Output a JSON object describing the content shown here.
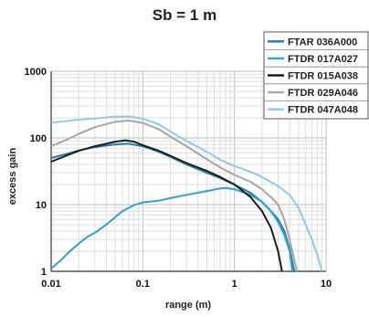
{
  "chart_data": {
    "type": "line",
    "title": "Sb = 1 m",
    "xlabel": "range (m)",
    "ylabel": "excess gain",
    "x_scale": "log",
    "y_scale": "log",
    "xlim": [
      0.01,
      10
    ],
    "ylim": [
      1,
      1000
    ],
    "x_ticks": [
      "0.01",
      "0.1",
      "1",
      "10"
    ],
    "y_ticks": [
      "1",
      "10",
      "100",
      "1000"
    ],
    "grid": true,
    "legend_position": "top-right",
    "series": [
      {
        "name": "FTAR 036A000",
        "color": "#1a7db5",
        "points": [
          [
            0.01,
            50
          ],
          [
            0.015,
            58
          ],
          [
            0.02,
            65
          ],
          [
            0.03,
            73
          ],
          [
            0.05,
            80
          ],
          [
            0.07,
            82
          ],
          [
            0.1,
            75
          ],
          [
            0.15,
            62
          ],
          [
            0.2,
            52
          ],
          [
            0.3,
            40
          ],
          [
            0.5,
            30
          ],
          [
            0.7,
            25
          ],
          [
            1,
            20
          ],
          [
            1.5,
            15
          ],
          [
            2,
            11
          ],
          [
            2.5,
            8
          ],
          [
            3,
            6
          ],
          [
            3.5,
            4
          ],
          [
            4,
            2.2
          ],
          [
            4.5,
            1
          ]
        ]
      },
      {
        "name": "FTDR 017A027",
        "color": "#2aa3d6",
        "points": [
          [
            0.01,
            1.1
          ],
          [
            0.013,
            1.5
          ],
          [
            0.016,
            2
          ],
          [
            0.02,
            2.6
          ],
          [
            0.025,
            3.3
          ],
          [
            0.03,
            3.8
          ],
          [
            0.04,
            5
          ],
          [
            0.05,
            6.5
          ],
          [
            0.06,
            8
          ],
          [
            0.08,
            9.8
          ],
          [
            0.1,
            10.8
          ],
          [
            0.15,
            11.5
          ],
          [
            0.2,
            12.5
          ],
          [
            0.3,
            14
          ],
          [
            0.5,
            16
          ],
          [
            0.7,
            17.5
          ],
          [
            0.8,
            17.8
          ],
          [
            1,
            17
          ],
          [
            1.5,
            14
          ],
          [
            2,
            11
          ],
          [
            2.5,
            8
          ],
          [
            3,
            5.5
          ],
          [
            3.5,
            3.5
          ],
          [
            4,
            2
          ],
          [
            4.3,
            1
          ]
        ]
      },
      {
        "name": "FTDR 015A038",
        "color": "#1c1c1c",
        "points": [
          [
            0.01,
            44
          ],
          [
            0.015,
            55
          ],
          [
            0.02,
            64
          ],
          [
            0.03,
            75
          ],
          [
            0.05,
            88
          ],
          [
            0.065,
            92
          ],
          [
            0.08,
            88
          ],
          [
            0.1,
            78
          ],
          [
            0.15,
            64
          ],
          [
            0.2,
            54
          ],
          [
            0.3,
            42
          ],
          [
            0.5,
            32
          ],
          [
            0.7,
            26
          ],
          [
            1,
            20
          ],
          [
            1.5,
            13
          ],
          [
            2,
            8
          ],
          [
            2.5,
            4.5
          ],
          [
            3,
            2
          ],
          [
            3.3,
            1
          ]
        ]
      },
      {
        "name": "FTDR 029A046",
        "color": "#a6a6a6",
        "points": [
          [
            0.01,
            75
          ],
          [
            0.015,
            95
          ],
          [
            0.02,
            115
          ],
          [
            0.03,
            145
          ],
          [
            0.05,
            175
          ],
          [
            0.07,
            182
          ],
          [
            0.1,
            168
          ],
          [
            0.15,
            135
          ],
          [
            0.2,
            105
          ],
          [
            0.3,
            75
          ],
          [
            0.5,
            48
          ],
          [
            0.7,
            36
          ],
          [
            1,
            28
          ],
          [
            1.5,
            22
          ],
          [
            2,
            17
          ],
          [
            2.5,
            13
          ],
          [
            3,
            10
          ],
          [
            3.5,
            6
          ],
          [
            4,
            3
          ],
          [
            4.5,
            1.5
          ],
          [
            4.8,
            1
          ]
        ]
      },
      {
        "name": "FTDR 047A048",
        "color": "#8fcae6",
        "points": [
          [
            0.01,
            170
          ],
          [
            0.015,
            180
          ],
          [
            0.02,
            188
          ],
          [
            0.03,
            195
          ],
          [
            0.05,
            208
          ],
          [
            0.07,
            210
          ],
          [
            0.1,
            195
          ],
          [
            0.15,
            160
          ],
          [
            0.2,
            125
          ],
          [
            0.3,
            90
          ],
          [
            0.5,
            62
          ],
          [
            0.7,
            47
          ],
          [
            1,
            38
          ],
          [
            1.5,
            31
          ],
          [
            2,
            26
          ],
          [
            3,
            19
          ],
          [
            4,
            14
          ],
          [
            5,
            9
          ],
          [
            6,
            5
          ],
          [
            7,
            3
          ],
          [
            8,
            1.8
          ],
          [
            9,
            1
          ]
        ]
      }
    ]
  }
}
